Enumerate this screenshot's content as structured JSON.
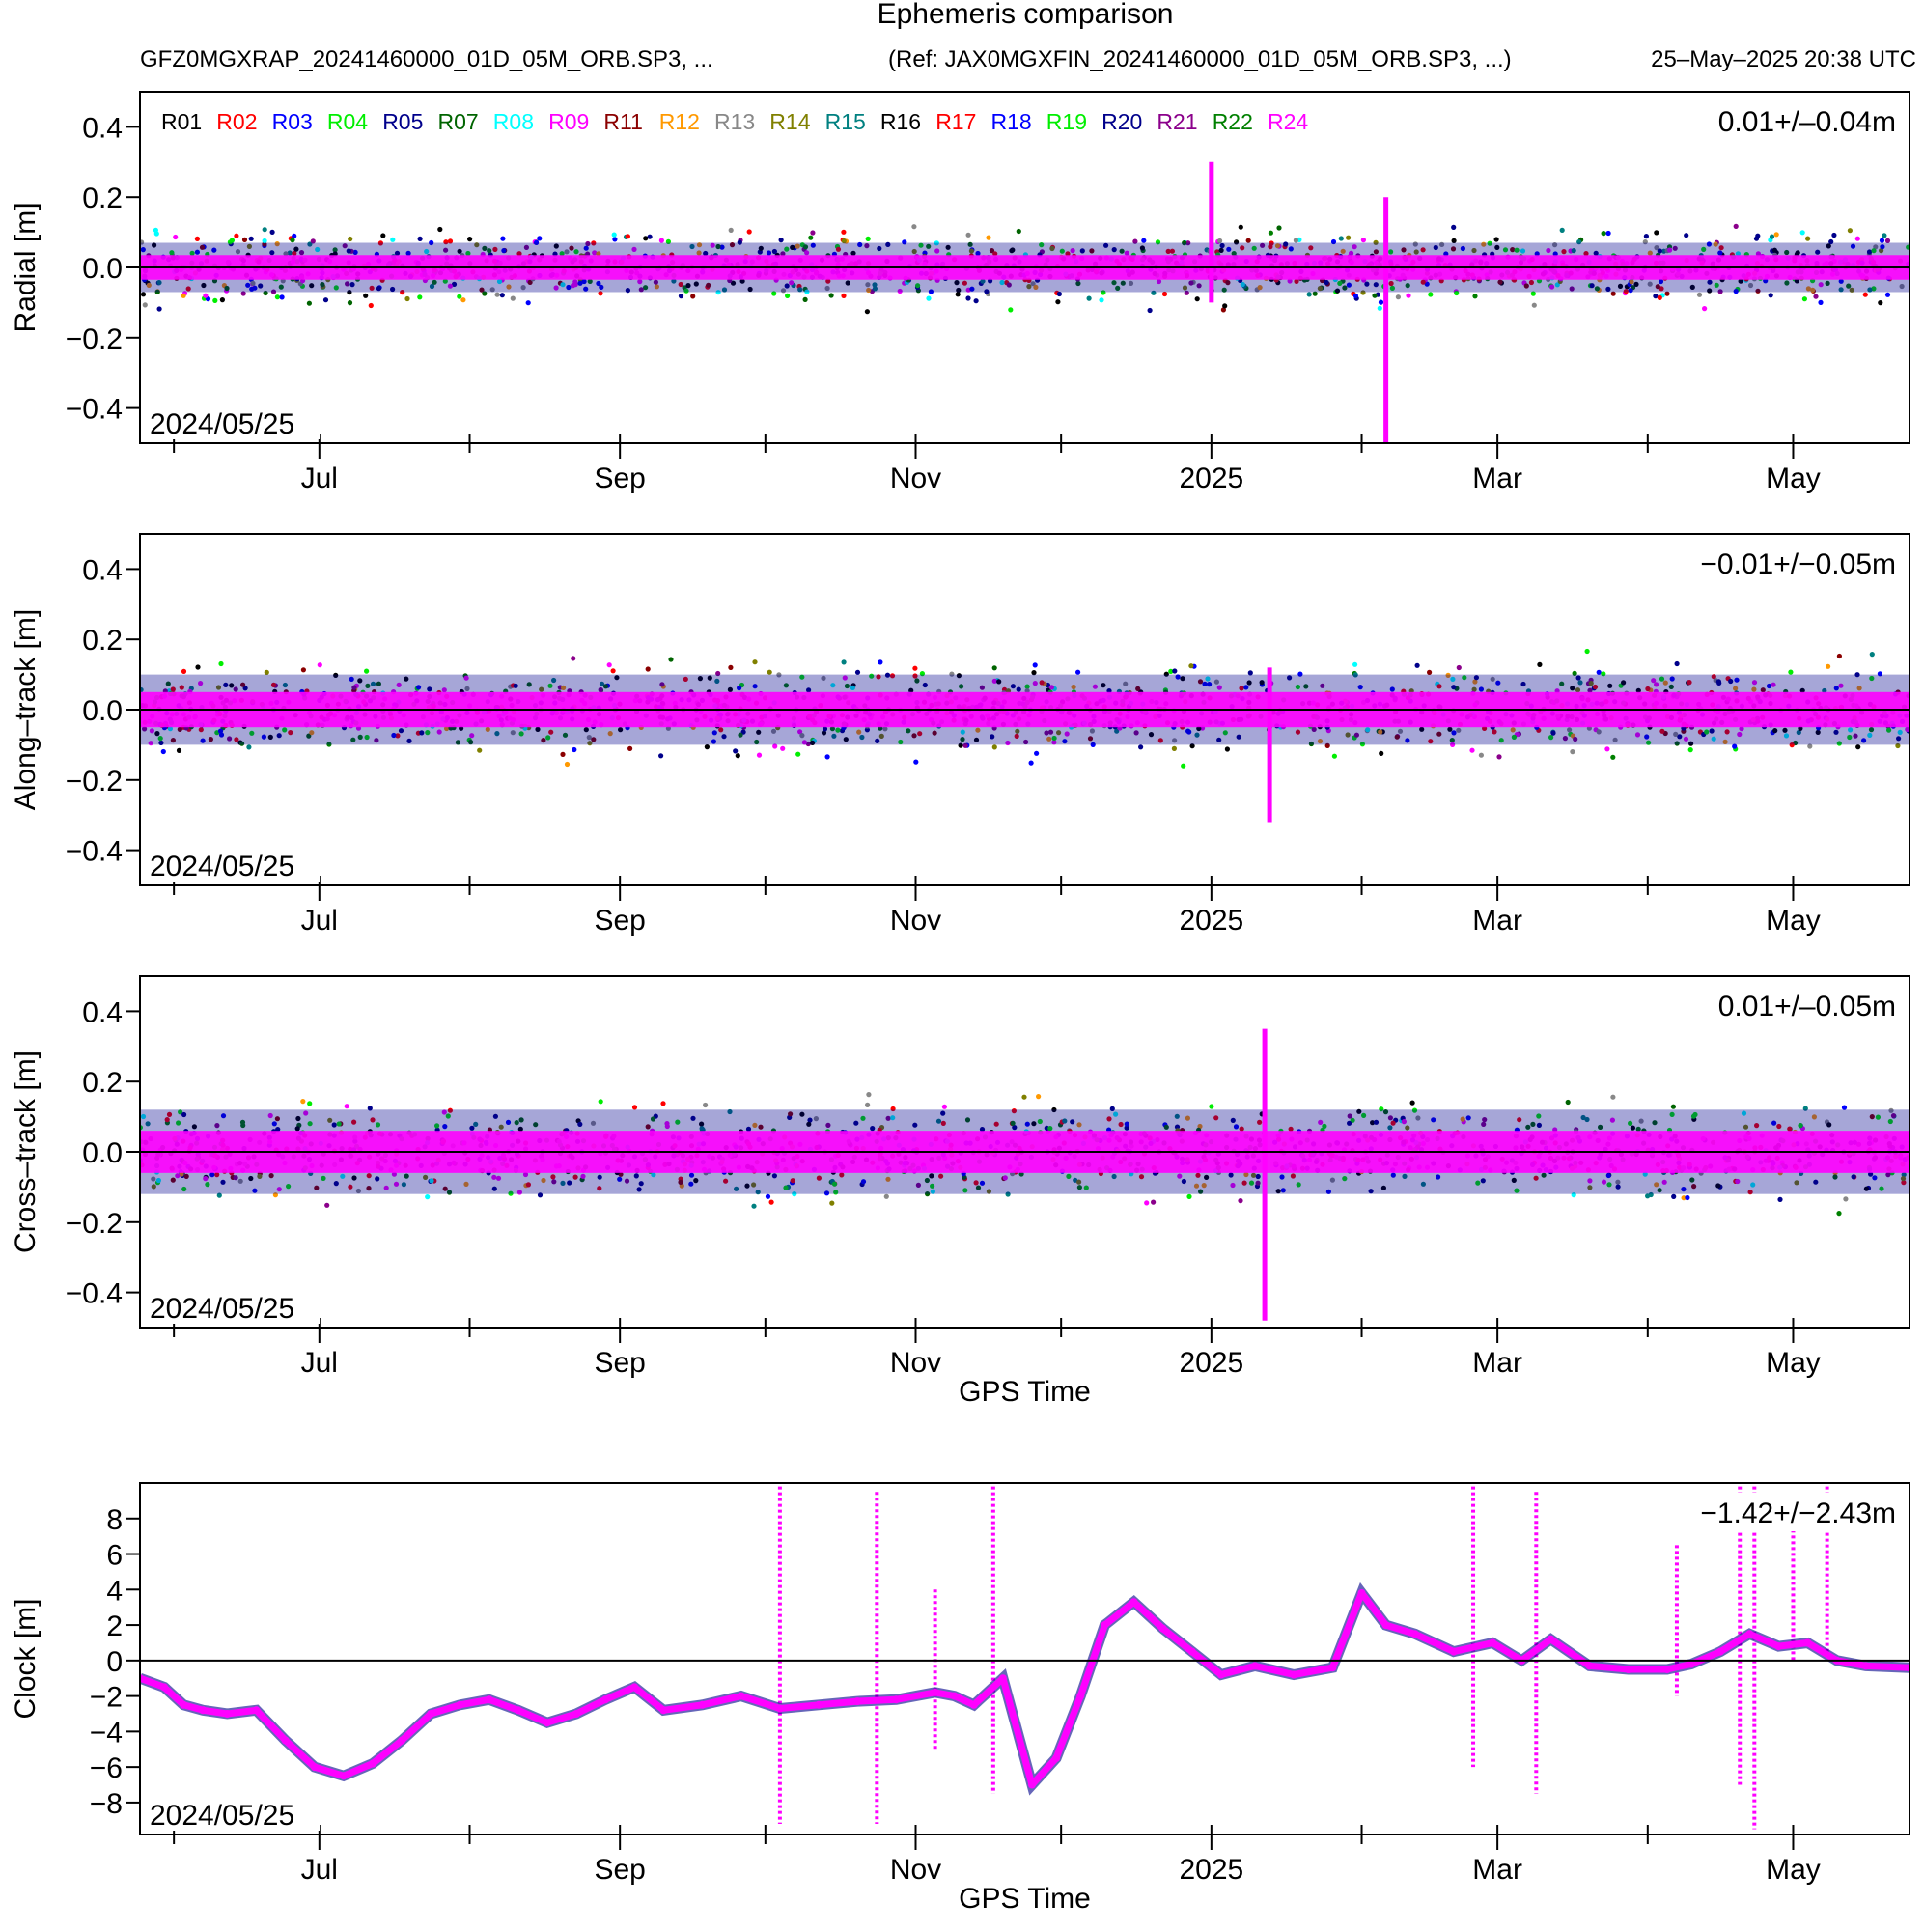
{
  "header": {
    "title": "Ephemeris comparison",
    "left": "GFZ0MGXRAP_20241460000_01D_05M_ORB.SP3, ...",
    "ref": "(Ref: JAX0MGXFIN_20241460000_01D_05M_ORB.SP3, ...)",
    "generated": "25–May–2025 20:38 UTC"
  },
  "legend": {
    "entries": [
      {
        "name": "R01",
        "color": "#000000"
      },
      {
        "name": "R02",
        "color": "#ff0000"
      },
      {
        "name": "R03",
        "color": "#0000ff"
      },
      {
        "name": "R04",
        "color": "#00ee00"
      },
      {
        "name": "R05",
        "color": "#00008b"
      },
      {
        "name": "R07",
        "color": "#006400"
      },
      {
        "name": "R08",
        "color": "#00ffff"
      },
      {
        "name": "R09",
        "color": "#ff00ff"
      },
      {
        "name": "R11",
        "color": "#8b0000"
      },
      {
        "name": "R12",
        "color": "#ff9900"
      },
      {
        "name": "R13",
        "color": "#888888"
      },
      {
        "name": "R14",
        "color": "#808000"
      },
      {
        "name": "R15",
        "color": "#008080"
      },
      {
        "name": "R16",
        "color": "#000000"
      },
      {
        "name": "R17",
        "color": "#ff0000"
      },
      {
        "name": "R18",
        "color": "#0000ff"
      },
      {
        "name": "R19",
        "color": "#00ee00"
      },
      {
        "name": "R20",
        "color": "#00008b"
      },
      {
        "name": "R21",
        "color": "#8b008b"
      },
      {
        "name": "R22",
        "color": "#008000"
      },
      {
        "name": "R24",
        "color": "#ff00ff"
      }
    ]
  },
  "chart_data": [
    {
      "type": "scatter",
      "ylabel": "Radial [m]",
      "stat": "0.01+/–0.04m",
      "start_label": "2024/05/25",
      "xlim": [
        "2024-05-25",
        "2025-05-25"
      ],
      "ylim": [
        -0.5,
        0.5
      ],
      "yticks": [
        {
          "value": 0.4,
          "label": "0.4"
        },
        {
          "value": 0.2,
          "label": "0.2"
        },
        {
          "value": 0.0,
          "label": "0.0"
        },
        {
          "value": -0.2,
          "label": "−0.2"
        },
        {
          "value": -0.4,
          "label": "−0.4"
        }
      ],
      "zero_line": 0,
      "band": {
        "outer": 0.07,
        "core": 0.035
      },
      "spread": 0.16,
      "spikes": [
        {
          "date": "2025-02-06",
          "min": -0.5,
          "max": 0.2
        },
        {
          "date": "2025-01-01",
          "min": -0.1,
          "max": 0.3
        }
      ]
    },
    {
      "type": "scatter",
      "ylabel": "Along–track [m]",
      "stat": "−0.01+/−0.05m",
      "start_label": "2024/05/25",
      "xlim": [
        "2024-05-25",
        "2025-05-25"
      ],
      "ylim": [
        -0.5,
        0.5
      ],
      "yticks": [
        {
          "value": 0.4,
          "label": "0.4"
        },
        {
          "value": 0.2,
          "label": "0.2"
        },
        {
          "value": 0.0,
          "label": "0.0"
        },
        {
          "value": -0.2,
          "label": "−0.2"
        },
        {
          "value": -0.4,
          "label": "−0.4"
        }
      ],
      "zero_line": 0,
      "band": {
        "outer": 0.1,
        "core": 0.05
      },
      "spread": 0.2,
      "spikes": [
        {
          "date": "2025-01-13",
          "min": -0.32,
          "max": 0.12
        }
      ]
    },
    {
      "type": "scatter",
      "ylabel": "Cross–track [m]",
      "stat": "0.01+/–0.05m",
      "start_label": "2024/05/25",
      "xlim": [
        "2024-05-25",
        "2025-05-25"
      ],
      "ylim": [
        -0.5,
        0.5
      ],
      "yticks": [
        {
          "value": 0.4,
          "label": "0.4"
        },
        {
          "value": 0.2,
          "label": "0.2"
        },
        {
          "value": 0.0,
          "label": "0.0"
        },
        {
          "value": -0.2,
          "label": "−0.2"
        },
        {
          "value": -0.4,
          "label": "−0.4"
        }
      ],
      "zero_line": 0,
      "band": {
        "outer": 0.12,
        "core": 0.06
      },
      "spread": 0.2,
      "spikes": [
        {
          "date": "2025-01-12",
          "min": -0.48,
          "max": 0.35
        }
      ],
      "xlabel": "GPS Time"
    },
    {
      "type": "line",
      "ylabel": "Clock [m]",
      "stat": "−1.42+/−2.43m",
      "start_label": "2024/05/25",
      "xlim": [
        "2024-05-25",
        "2025-05-25"
      ],
      "ylim": [
        -9.8,
        10.0
      ],
      "yticks": [
        {
          "value": 8,
          "label": "8"
        },
        {
          "value": 6,
          "label": "6"
        },
        {
          "value": 4,
          "label": "4"
        },
        {
          "value": 2,
          "label": "2"
        },
        {
          "value": 0,
          "label": "0"
        },
        {
          "value": -2,
          "label": "−2"
        },
        {
          "value": -4,
          "label": "−4"
        },
        {
          "value": -6,
          "label": "−6"
        },
        {
          "value": -8,
          "label": "−8"
        }
      ],
      "zero_line": 0,
      "series": {
        "x": [
          "2024-05-25",
          "2024-05-30",
          "2024-06-03",
          "2024-06-07",
          "2024-06-12",
          "2024-06-18",
          "2024-06-24",
          "2024-06-30",
          "2024-07-06",
          "2024-07-12",
          "2024-07-18",
          "2024-07-24",
          "2024-07-30",
          "2024-08-05",
          "2024-08-11",
          "2024-08-17",
          "2024-08-23",
          "2024-08-29",
          "2024-09-04",
          "2024-09-10",
          "2024-09-18",
          "2024-09-26",
          "2024-10-04",
          "2024-10-12",
          "2024-10-20",
          "2024-10-28",
          "2024-11-05",
          "2024-11-09",
          "2024-11-13",
          "2024-11-19",
          "2024-11-25",
          "2024-11-30",
          "2024-12-05",
          "2024-12-10",
          "2024-12-16",
          "2024-12-22",
          "2024-12-28",
          "2025-01-03",
          "2025-01-10",
          "2025-01-18",
          "2025-01-26",
          "2025-02-01",
          "2025-02-06",
          "2025-02-12",
          "2025-02-20",
          "2025-02-28",
          "2025-03-06",
          "2025-03-12",
          "2025-03-20",
          "2025-03-28",
          "2025-04-05",
          "2025-04-10",
          "2025-04-16",
          "2025-04-22",
          "2025-04-28",
          "2025-05-04",
          "2025-05-10",
          "2025-05-16",
          "2025-05-25"
        ],
        "y": [
          -1.0,
          -1.5,
          -2.5,
          -2.8,
          -3.0,
          -2.8,
          -4.5,
          -6.0,
          -6.5,
          -5.8,
          -4.5,
          -3.0,
          -2.5,
          -2.2,
          -2.8,
          -3.5,
          -3.0,
          -2.2,
          -1.5,
          -2.8,
          -2.5,
          -2.0,
          -2.7,
          -2.5,
          -2.3,
          -2.2,
          -1.8,
          -2.0,
          -2.5,
          -1.0,
          -7.0,
          -5.5,
          -2.0,
          2.0,
          3.3,
          1.8,
          0.5,
          -0.8,
          -0.3,
          -0.8,
          -0.4,
          3.8,
          2.0,
          1.5,
          0.5,
          1.0,
          0.0,
          1.2,
          -0.3,
          -0.5,
          -0.5,
          -0.2,
          0.5,
          1.5,
          0.8,
          1.0,
          0.0,
          -0.3,
          -0.4
        ]
      },
      "spikes": [
        {
          "date": "2024-10-04",
          "min": -9.2,
          "max": 9.8
        },
        {
          "date": "2024-10-24",
          "min": -9.2,
          "max": 9.5
        },
        {
          "date": "2024-11-05",
          "min": -5.0,
          "max": 4.0
        },
        {
          "date": "2024-11-17",
          "min": -7.5,
          "max": 9.8
        },
        {
          "date": "2025-02-24",
          "min": -6.0,
          "max": 9.8
        },
        {
          "date": "2025-03-09",
          "min": -7.5,
          "max": 9.5
        },
        {
          "date": "2025-04-07",
          "min": -2.0,
          "max": 6.5
        },
        {
          "date": "2025-04-20",
          "min": -7.0,
          "max": 9.8
        },
        {
          "date": "2025-04-23",
          "min": -9.5,
          "max": 9.8
        },
        {
          "date": "2025-05-01",
          "min": 0.0,
          "max": 9.0
        },
        {
          "date": "2025-05-08",
          "min": 0.5,
          "max": 9.8
        }
      ],
      "xlabel": "GPS Time"
    }
  ],
  "xticks": [
    {
      "date": "2024-07-01",
      "label": "Jul"
    },
    {
      "date": "2024-09-01",
      "label": "Sep"
    },
    {
      "date": "2024-11-01",
      "label": "Nov"
    },
    {
      "date": "2025-01-01",
      "label": "2025"
    },
    {
      "date": "2025-03-01",
      "label": "Mar"
    },
    {
      "date": "2025-05-01",
      "label": "May"
    }
  ],
  "xticks_minor": [
    "2024-06-01",
    "2024-08-01",
    "2024-10-01",
    "2024-12-01",
    "2025-02-01",
    "2025-04-01"
  ]
}
